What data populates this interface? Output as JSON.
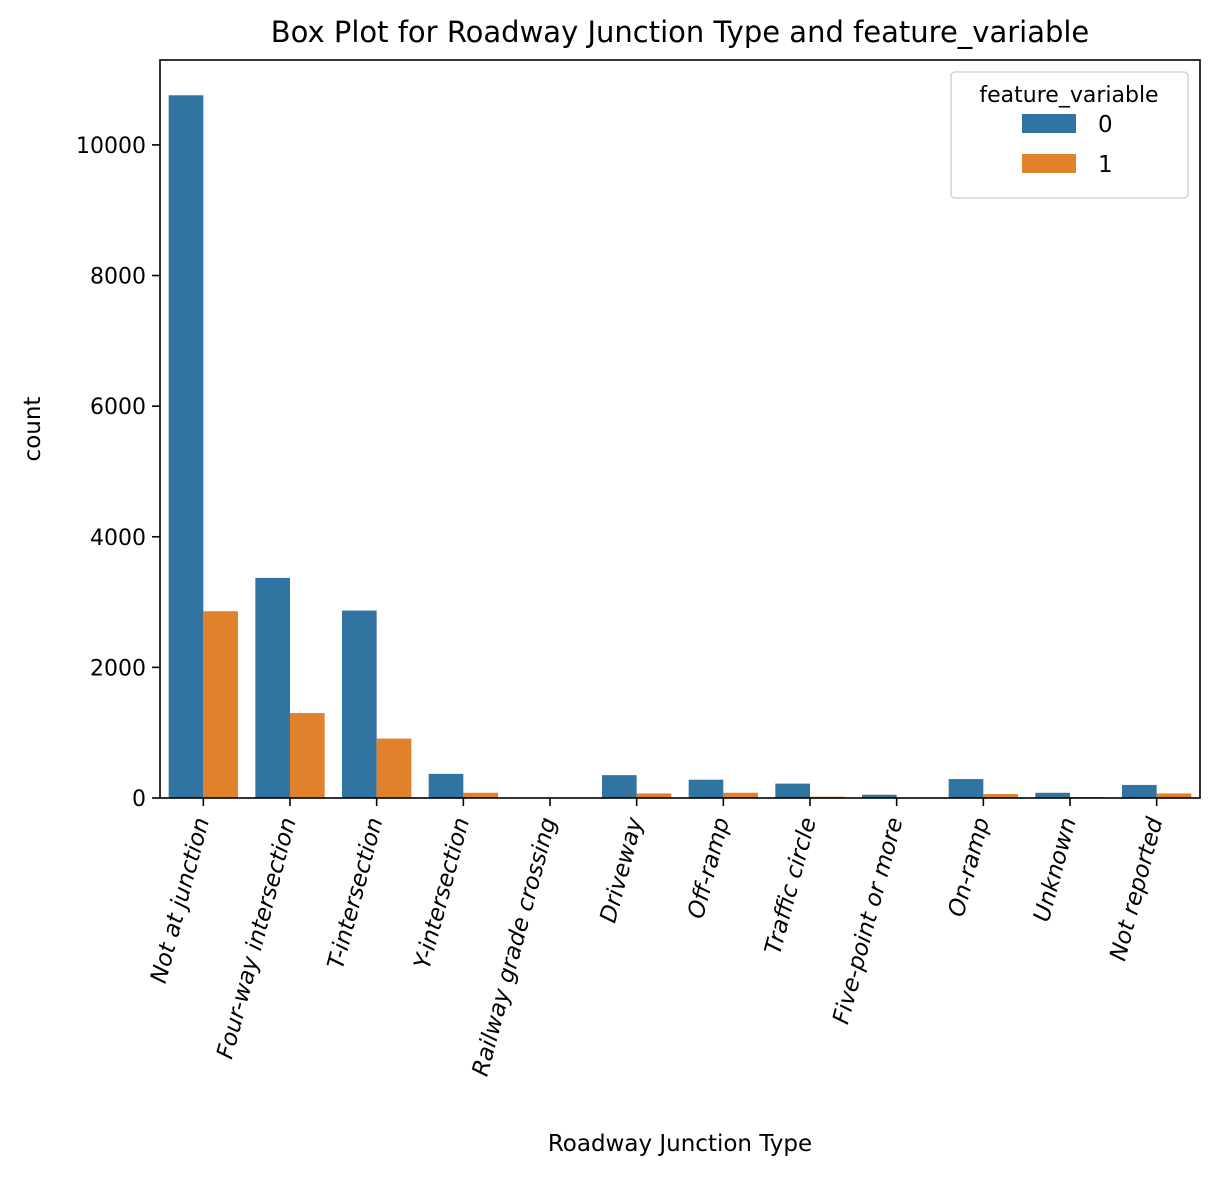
{
  "chart_data": {
    "type": "bar",
    "title": "Box Plot for Roadway Junction Type and feature_variable",
    "xlabel": "Roadway Junction Type",
    "ylabel": "count",
    "ylim": [
      0,
      11300
    ],
    "yticks": [
      0,
      2000,
      4000,
      6000,
      8000,
      10000
    ],
    "grid": false,
    "legend": {
      "title": "feature_variable",
      "placement": "top-right"
    },
    "categories": [
      "Not at junction",
      "Four-way intersection",
      "T-intersection",
      "Y-intersection",
      "Railway grade crossing",
      "Driveway",
      "Off-ramp",
      "Traffic circle",
      "Five-point or more",
      "On-ramp",
      "Unknown",
      "Not reported"
    ],
    "series": [
      {
        "name": "0",
        "color": "#3274a1",
        "values": [
          10760,
          3370,
          2870,
          370,
          5,
          350,
          280,
          220,
          50,
          290,
          80,
          200
        ]
      },
      {
        "name": "1",
        "color": "#e1812c",
        "values": [
          2860,
          1300,
          910,
          80,
          2,
          70,
          80,
          20,
          5,
          60,
          15,
          70
        ]
      }
    ]
  }
}
